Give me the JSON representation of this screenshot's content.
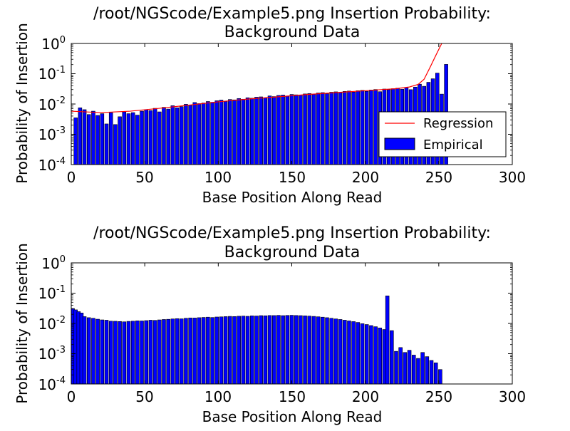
{
  "chart_data": [
    {
      "type": "bar",
      "title_line1": "/root/NGScode/Example5.png Insertion Probability:",
      "title_line2": "Background Data",
      "xlabel": "Base Position Along Read",
      "ylabel": "Probability of Insertion",
      "xlim": [
        0,
        300
      ],
      "ylim": [
        0.0001,
        1
      ],
      "yscale": "log",
      "xticks": [
        "0",
        "50",
        "100",
        "150",
        "200",
        "250",
        "300"
      ],
      "yticks": [
        {
          "base": "10",
          "exp": "-4"
        },
        {
          "base": "10",
          "exp": "-3"
        },
        {
          "base": "10",
          "exp": "-2"
        },
        {
          "base": "10",
          "exp": "-1"
        },
        {
          "base": "10",
          "exp": "0"
        }
      ],
      "legend": {
        "placement": "lower-right",
        "entries": [
          {
            "label": "Regression",
            "kind": "line",
            "color": "#ff0000"
          },
          {
            "label": "Empirical",
            "kind": "patch",
            "color": "#0000ff"
          }
        ]
      },
      "series": [
        {
          "name": "Empirical",
          "kind": "bar",
          "color": "#0000ff",
          "x": [
            3,
            6,
            9,
            12,
            15,
            18,
            21,
            24,
            27,
            30,
            33,
            36,
            39,
            42,
            45,
            48,
            51,
            54,
            57,
            60,
            63,
            66,
            69,
            72,
            75,
            78,
            81,
            84,
            87,
            90,
            93,
            96,
            99,
            102,
            105,
            108,
            111,
            114,
            117,
            120,
            123,
            126,
            129,
            132,
            135,
            138,
            141,
            144,
            147,
            150,
            153,
            156,
            159,
            162,
            165,
            168,
            171,
            174,
            177,
            180,
            183,
            186,
            189,
            192,
            195,
            198,
            201,
            204,
            207,
            210,
            213,
            216,
            219,
            222,
            225,
            228,
            231,
            234,
            237,
            240,
            243,
            246,
            249,
            252,
            255
          ],
          "values": [
            0.0035,
            0.0075,
            0.0065,
            0.0045,
            0.0058,
            0.0042,
            0.0048,
            0.0022,
            0.0052,
            0.0021,
            0.0038,
            0.0055,
            0.0048,
            0.0052,
            0.0043,
            0.0058,
            0.0065,
            0.0061,
            0.0072,
            0.0055,
            0.0078,
            0.0068,
            0.0088,
            0.0075,
            0.0082,
            0.0098,
            0.0091,
            0.0112,
            0.0103,
            0.0108,
            0.0121,
            0.0114,
            0.0128,
            0.0135,
            0.0122,
            0.0141,
            0.0137,
            0.0152,
            0.0144,
            0.0161,
            0.0155,
            0.0168,
            0.0172,
            0.0158,
            0.0185,
            0.0176,
            0.0192,
            0.0198,
            0.0183,
            0.0207,
            0.0201,
            0.0195,
            0.0215,
            0.0222,
            0.0209,
            0.0231,
            0.0238,
            0.0219,
            0.0245,
            0.0252,
            0.0236,
            0.0261,
            0.0268,
            0.0248,
            0.0275,
            0.0283,
            0.0262,
            0.0291,
            0.0301,
            0.0255,
            0.0312,
            0.0298,
            0.0321,
            0.0334,
            0.0308,
            0.0345,
            0.0298,
            0.0362,
            0.0451,
            0.0385,
            0.0521,
            0.0682,
            0.1052,
            0.0212,
            0.2035
          ]
        },
        {
          "name": "Regression",
          "kind": "line",
          "color": "#ff0000",
          "x": [
            0,
            20,
            40,
            60,
            80,
            100,
            120,
            140,
            160,
            180,
            200,
            220,
            230,
            236,
            240,
            244,
            248,
            252
          ],
          "values": [
            0.0058,
            0.0052,
            0.0058,
            0.0072,
            0.0092,
            0.0118,
            0.0145,
            0.0172,
            0.0205,
            0.0238,
            0.0275,
            0.0318,
            0.0365,
            0.0445,
            0.0658,
            0.1602,
            0.4051,
            1.0
          ]
        }
      ]
    },
    {
      "type": "bar",
      "title_line1": "/root/NGScode/Example5.png Insertion Probability:",
      "title_line2": "Background Data",
      "xlabel": "Base Position Along Read",
      "ylabel": "Probability of Insertion",
      "xlim": [
        0,
        300
      ],
      "ylim": [
        0.0001,
        1
      ],
      "yscale": "log",
      "xticks": [
        "0",
        "50",
        "100",
        "150",
        "200",
        "250",
        "300"
      ],
      "yticks": [
        {
          "base": "10",
          "exp": "-4"
        },
        {
          "base": "10",
          "exp": "-3"
        },
        {
          "base": "10",
          "exp": "-2"
        },
        {
          "base": "10",
          "exp": "-1"
        },
        {
          "base": "10",
          "exp": "0"
        }
      ],
      "series": [
        {
          "name": "Empirical",
          "kind": "bar",
          "color": "#0000ff",
          "x": [
            1,
            3,
            5,
            7,
            9,
            12,
            15,
            18,
            21,
            24,
            27,
            30,
            33,
            36,
            39,
            42,
            45,
            48,
            51,
            54,
            57,
            60,
            63,
            66,
            69,
            72,
            75,
            78,
            81,
            84,
            87,
            90,
            93,
            96,
            99,
            102,
            105,
            108,
            111,
            114,
            117,
            120,
            123,
            126,
            129,
            132,
            135,
            138,
            141,
            144,
            147,
            150,
            153,
            156,
            159,
            162,
            165,
            168,
            171,
            174,
            177,
            180,
            183,
            186,
            189,
            192,
            195,
            198,
            201,
            204,
            207,
            210,
            213,
            215,
            218,
            221,
            224,
            227,
            230,
            233,
            236,
            239,
            242,
            245,
            248,
            251
          ],
          "values": [
            0.0312,
            0.0281,
            0.0245,
            0.0221,
            0.0168,
            0.0155,
            0.0148,
            0.0138,
            0.0131,
            0.0128,
            0.0119,
            0.0118,
            0.0116,
            0.0113,
            0.0117,
            0.0119,
            0.0122,
            0.0121,
            0.0124,
            0.0128,
            0.0126,
            0.0131,
            0.0135,
            0.0137,
            0.0141,
            0.0144,
            0.0142,
            0.0148,
            0.0152,
            0.0151,
            0.0155,
            0.0158,
            0.0161,
            0.0157,
            0.0163,
            0.0165,
            0.0168,
            0.0171,
            0.0169,
            0.0173,
            0.0175,
            0.0172,
            0.0178,
            0.0176,
            0.0181,
            0.0179,
            0.0183,
            0.0182,
            0.0185,
            0.0181,
            0.0184,
            0.0186,
            0.0183,
            0.0181,
            0.0178,
            0.0175,
            0.0171,
            0.0166,
            0.0161,
            0.0155,
            0.0148,
            0.0141,
            0.0135,
            0.0128,
            0.0121,
            0.0115,
            0.0108,
            0.0098,
            0.0092,
            0.0085,
            0.0078,
            0.0071,
            0.0063,
            0.0812,
            0.0058,
            0.0012,
            0.0016,
            0.0011,
            0.0013,
            0.0009,
            0.0007,
            0.0011,
            0.0008,
            0.0006,
            0.0005,
            0.0003
          ]
        }
      ]
    }
  ]
}
